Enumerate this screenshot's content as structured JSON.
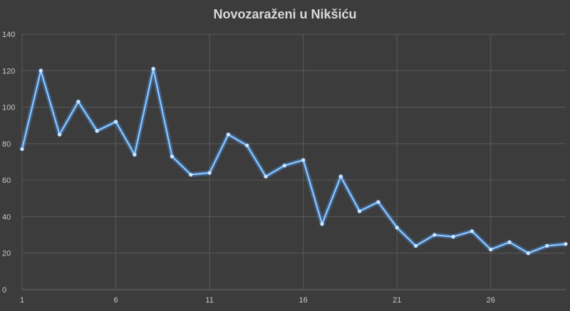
{
  "chart_data": {
    "type": "line",
    "title": "Novozaraženi u Nikšiću",
    "xlabel": "",
    "ylabel": "",
    "x": [
      1,
      2,
      3,
      4,
      5,
      6,
      7,
      8,
      9,
      10,
      11,
      12,
      13,
      14,
      15,
      16,
      17,
      18,
      19,
      20,
      21,
      22,
      23,
      24,
      25,
      26,
      27,
      28,
      29,
      30
    ],
    "x_ticks": [
      1,
      6,
      11,
      16,
      21,
      26
    ],
    "xlim": [
      1,
      30
    ],
    "ylim": [
      0,
      140
    ],
    "y_ticks": [
      0,
      20,
      40,
      60,
      80,
      100,
      120,
      140
    ],
    "grid": true,
    "legend": "none",
    "series": [
      {
        "values": [
          77,
          120,
          85,
          103,
          87,
          92,
          74,
          121,
          73,
          63,
          64,
          85,
          79,
          62,
          68,
          71,
          36,
          62,
          43,
          48,
          34,
          24,
          30,
          29,
          32,
          22,
          26,
          20,
          24,
          25
        ],
        "color": "#8cc8ff"
      }
    ],
    "colors": {
      "background": "#3c3c3c",
      "grid": "#5a5a5a",
      "text": "#c8c8c8",
      "title": "#d9d9d9"
    }
  }
}
